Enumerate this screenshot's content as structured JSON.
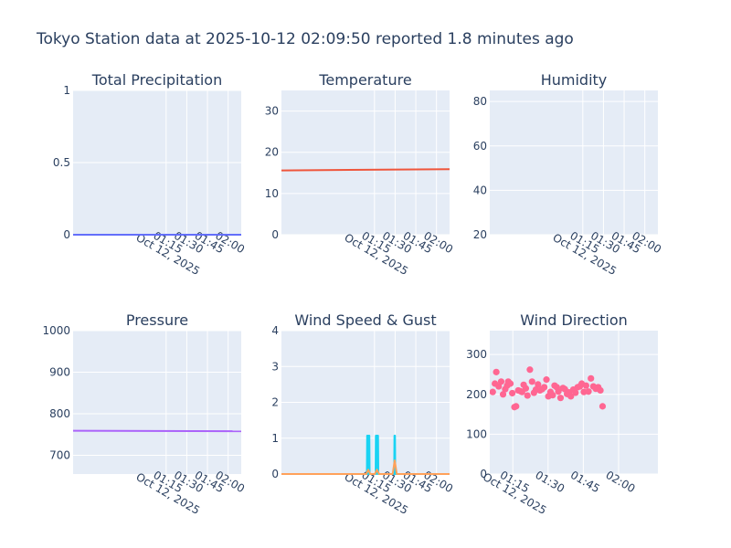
{
  "title": "Tokyo Station data at 2025-10-12 02:09:50 reported 1.8 minutes ago",
  "chart_data": [
    {
      "type": "line",
      "title": "Total Precipitation",
      "ylim": [
        0,
        1
      ],
      "y_ticks": [
        0,
        0.5,
        1
      ],
      "y_tick_labels": [
        "0",
        "0.5",
        "1"
      ],
      "xlim": [
        7.5,
        129.5
      ],
      "x_tick_minutes": [
        75,
        90,
        105,
        120
      ],
      "x_tick_labels": [
        "01:15",
        "01:30",
        "01:45",
        "02:00"
      ],
      "x_date_label": "Oct 12, 2025",
      "series": [
        {
          "name": "Total Precipitation",
          "color": "#636efa",
          "x": [
            7.5,
            129.5
          ],
          "y": [
            0,
            0
          ]
        }
      ]
    },
    {
      "type": "line",
      "title": "Temperature",
      "ylim": [
        0,
        35
      ],
      "y_ticks": [
        0,
        10,
        20,
        30
      ],
      "y_tick_labels": [
        "0",
        "10",
        "20",
        "30"
      ],
      "xlim": [
        7.5,
        129.5
      ],
      "x_tick_minutes": [
        75,
        90,
        105,
        120
      ],
      "x_tick_labels": [
        "01:15",
        "01:30",
        "01:45",
        "02:00"
      ],
      "x_date_label": "Oct 12, 2025",
      "series": [
        {
          "name": "Temperature",
          "color": "#ef553b",
          "x": [
            7.5,
            129.5
          ],
          "y": [
            15.6,
            15.9
          ]
        }
      ]
    },
    {
      "type": "line",
      "title": "Humidity",
      "ylim": [
        20,
        85
      ],
      "y_ticks": [
        20,
        40,
        60,
        80
      ],
      "y_tick_labels": [
        "20",
        "40",
        "60",
        "80"
      ],
      "xlim": [
        7.5,
        129.5
      ],
      "x_tick_minutes": [
        75,
        90,
        105,
        120
      ],
      "x_tick_labels": [
        "01:15",
        "01:30",
        "01:45",
        "02:00"
      ],
      "x_date_label": "Oct 12, 2025",
      "series": []
    },
    {
      "type": "line",
      "title": "Pressure",
      "ylim": [
        655,
        1000
      ],
      "y_ticks": [
        700,
        800,
        900,
        1000
      ],
      "y_tick_labels": [
        "700",
        "800",
        "900",
        "1000"
      ],
      "xlim": [
        7.5,
        129.5
      ],
      "x_tick_minutes": [
        75,
        90,
        105,
        120
      ],
      "x_tick_labels": [
        "01:15",
        "01:30",
        "01:45",
        "02:00"
      ],
      "x_date_label": "Oct 12, 2025",
      "series": [
        {
          "name": "Pressure",
          "color": "#ab63fa",
          "x": [
            7.5,
            129.5
          ],
          "y": [
            759,
            758
          ]
        }
      ]
    },
    {
      "type": "line",
      "title": "Wind Speed & Gust",
      "ylim": [
        0,
        4
      ],
      "y_ticks": [
        0,
        1,
        2,
        3,
        4
      ],
      "y_tick_labels": [
        "0",
        "1",
        "2",
        "3",
        "4"
      ],
      "xlim": [
        7.5,
        129.5
      ],
      "x_tick_minutes": [
        75,
        90,
        105,
        120
      ],
      "x_tick_labels": [
        "01:15",
        "01:30",
        "01:45",
        "02:00"
      ],
      "x_date_label": "Oct 12, 2025",
      "series": [
        {
          "name": "Wind Gust",
          "color": "#19d3f3",
          "x": [
            7.5,
            69.5,
            69.7,
            70.3,
            70.5,
            70.7,
            71.3,
            71.5,
            75.8,
            76.0,
            76.6,
            76.8,
            77.0,
            77.6,
            77.8,
            89.3,
            89.5,
            89.9,
            90.1,
            129.5
          ],
          "y": [
            0,
            0,
            1.07,
            1.07,
            0,
            1.07,
            1.07,
            0,
            0,
            1.07,
            1.07,
            0,
            1.07,
            1.07,
            0,
            0,
            1.07,
            1.07,
            0,
            0
          ]
        },
        {
          "name": "Wind Speed",
          "color": "#ffa15a",
          "x": [
            7.5,
            69.0,
            70.5,
            72.0,
            75.2,
            76.8,
            78.4,
            88.2,
            89.7,
            91.2,
            129.5
          ],
          "y": [
            0,
            0,
            0.12,
            0,
            0,
            0.12,
            0,
            0,
            0.38,
            0,
            0
          ]
        }
      ]
    },
    {
      "type": "scatter",
      "title": "Wind Direction",
      "ylim": [
        0,
        360
      ],
      "y_ticks": [
        0,
        100,
        200,
        300
      ],
      "y_tick_labels": [
        "0",
        "100",
        "200",
        "300"
      ],
      "xlim": [
        56.5,
        118.5
      ],
      "x_tick_minutes": [
        65,
        78,
        91,
        104
      ],
      "x_tick_labels": [
        "01:15",
        "01:30",
        "01:45",
        "02:00"
      ],
      "x_date_label": "Oct 12, 2025",
      "series": [
        {
          "name": "Wind Direction",
          "color": "#ff6692",
          "x": [
            57.6,
            58.4,
            58.9,
            59.8,
            60.7,
            61.4,
            62.2,
            62.9,
            63.3,
            64.1,
            64.8,
            65.6,
            66.2,
            67.0,
            67.8,
            68.4,
            69.0,
            69.8,
            70.4,
            71.3,
            72.1,
            72.8,
            73.5,
            74.3,
            75.0,
            75.8,
            76.6,
            77.4,
            78.1,
            78.9,
            79.7,
            80.4,
            81.2,
            81.8,
            82.6,
            83.5,
            84.2,
            85.0,
            85.7,
            86.4,
            87.3,
            88.1,
            88.9,
            89.7,
            90.4,
            91.2,
            92.0,
            92.9,
            93.8,
            94.7,
            95.6,
            96.5,
            97.3,
            98.1
          ],
          "y": [
            206,
            227,
            256,
            220,
            232,
            200,
            213,
            222,
            232,
            227,
            203,
            168,
            170,
            210,
            208,
            206,
            224,
            215,
            197,
            262,
            232,
            204,
            212,
            225,
            210,
            213,
            218,
            237,
            195,
            206,
            198,
            222,
            218,
            207,
            191,
            216,
            213,
            201,
            205,
            195,
            212,
            204,
            218,
            220,
            227,
            206,
            222,
            207,
            240,
            220,
            214,
            218,
            210,
            170
          ]
        }
      ]
    }
  ]
}
